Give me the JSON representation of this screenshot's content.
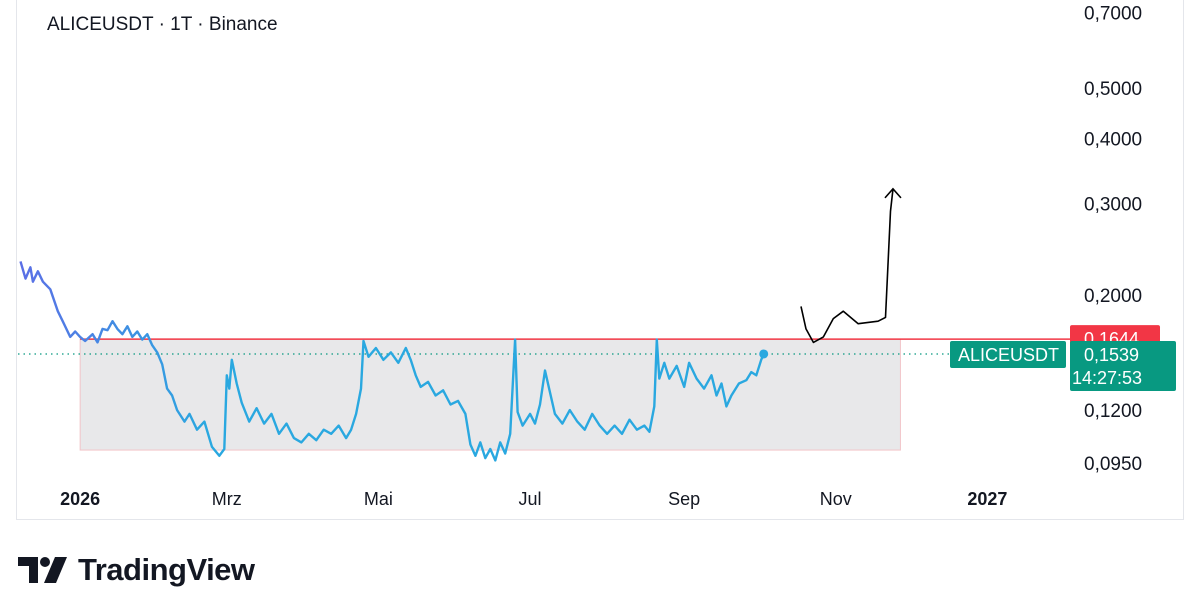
{
  "header": {
    "title": "ALICEUSDT · 1T · Binance"
  },
  "brand": {
    "name": "TradingView",
    "logo_icon": "tradingview-logo-icon"
  },
  "colors": {
    "price_line_start": "#5b6fe6",
    "price_line_end": "#2aa8e0",
    "resistance": "#f23645",
    "current_price": "#089981",
    "range_fill": "#e8e8ea",
    "drawing": "#000000"
  },
  "chart_data": {
    "type": "line",
    "title": "ALICEUSDT · 1T · Binance",
    "symbol": "ALICEUSDT",
    "interval": "1T",
    "exchange": "Binance",
    "y_scale": "log",
    "ylim": [
      0.092,
      0.72
    ],
    "y_ticks": [
      {
        "value": 0.7,
        "label": "0,7000"
      },
      {
        "value": 0.5,
        "label": "0,5000"
      },
      {
        "value": 0.4,
        "label": "0,4000"
      },
      {
        "value": 0.3,
        "label": "0,3000"
      },
      {
        "value": 0.2,
        "label": "0,2000"
      },
      {
        "value": 0.12,
        "label": "0,1200"
      },
      {
        "value": 0.095,
        "label": "0,0950"
      }
    ],
    "x_range": [
      "2025-12-07",
      "2027-01-31"
    ],
    "x_ticks": [
      {
        "date": "2026-01-01",
        "label": "2026",
        "year": true
      },
      {
        "date": "2026-03-01",
        "label": "Mrz",
        "year": false
      },
      {
        "date": "2026-05-01",
        "label": "Mai",
        "year": false
      },
      {
        "date": "2026-07-01",
        "label": "Jul",
        "year": false
      },
      {
        "date": "2026-09-01",
        "label": "Sep",
        "year": false
      },
      {
        "date": "2026-11-01",
        "label": "Nov",
        "year": false
      },
      {
        "date": "2027-01-01",
        "label": "2027",
        "year": true
      }
    ],
    "series": [
      {
        "points": [
          [
            "2025-12-08",
            0.232
          ],
          [
            "2025-12-10",
            0.215
          ],
          [
            "2025-12-12",
            0.226
          ],
          [
            "2025-12-13",
            0.212
          ],
          [
            "2025-12-15",
            0.222
          ],
          [
            "2025-12-17",
            0.212
          ],
          [
            "2025-12-20",
            0.205
          ],
          [
            "2025-12-23",
            0.186
          ],
          [
            "2025-12-25",
            0.178
          ],
          [
            "2025-12-28",
            0.166
          ],
          [
            "2025-12-30",
            0.17
          ],
          [
            "2026-01-01",
            0.166
          ],
          [
            "2026-01-03",
            0.163
          ],
          [
            "2026-01-06",
            0.168
          ],
          [
            "2026-01-08",
            0.162
          ],
          [
            "2026-01-10",
            0.172
          ],
          [
            "2026-01-12",
            0.171
          ],
          [
            "2026-01-14",
            0.178
          ],
          [
            "2026-01-16",
            0.172
          ],
          [
            "2026-01-18",
            0.168
          ],
          [
            "2026-01-20",
            0.174
          ],
          [
            "2026-01-22",
            0.166
          ],
          [
            "2026-01-24",
            0.17
          ],
          [
            "2026-01-26",
            0.164
          ],
          [
            "2026-01-28",
            0.168
          ],
          [
            "2026-01-30",
            0.16
          ],
          [
            "2026-02-01",
            0.155
          ],
          [
            "2026-02-03",
            0.147
          ],
          [
            "2026-02-05",
            0.132
          ],
          [
            "2026-02-07",
            0.128
          ],
          [
            "2026-02-09",
            0.12
          ],
          [
            "2026-02-12",
            0.114
          ],
          [
            "2026-02-14",
            0.118
          ],
          [
            "2026-02-17",
            0.11
          ],
          [
            "2026-02-20",
            0.114
          ],
          [
            "2026-02-23",
            0.102
          ],
          [
            "2026-02-26",
            0.098
          ],
          [
            "2026-02-28",
            0.101
          ],
          [
            "2026-03-01",
            0.14
          ],
          [
            "2026-03-02",
            0.132
          ],
          [
            "2026-03-03",
            0.15
          ],
          [
            "2026-03-05",
            0.135
          ],
          [
            "2026-03-07",
            0.124
          ],
          [
            "2026-03-10",
            0.114
          ],
          [
            "2026-03-13",
            0.121
          ],
          [
            "2026-03-16",
            0.113
          ],
          [
            "2026-03-19",
            0.118
          ],
          [
            "2026-03-22",
            0.108
          ],
          [
            "2026-03-25",
            0.113
          ],
          [
            "2026-03-28",
            0.106
          ],
          [
            "2026-03-31",
            0.104
          ],
          [
            "2026-04-03",
            0.108
          ],
          [
            "2026-04-06",
            0.105
          ],
          [
            "2026-04-09",
            0.11
          ],
          [
            "2026-04-12",
            0.108
          ],
          [
            "2026-04-15",
            0.112
          ],
          [
            "2026-04-18",
            0.106
          ],
          [
            "2026-04-20",
            0.11
          ],
          [
            "2026-04-22",
            0.118
          ],
          [
            "2026-04-24",
            0.132
          ],
          [
            "2026-04-25",
            0.163
          ],
          [
            "2026-04-27",
            0.152
          ],
          [
            "2026-04-30",
            0.158
          ],
          [
            "2026-05-03",
            0.15
          ],
          [
            "2026-05-06",
            0.155
          ],
          [
            "2026-05-09",
            0.148
          ],
          [
            "2026-05-12",
            0.158
          ],
          [
            "2026-05-14",
            0.15
          ],
          [
            "2026-05-16",
            0.14
          ],
          [
            "2026-05-18",
            0.133
          ],
          [
            "2026-05-21",
            0.136
          ],
          [
            "2026-05-24",
            0.128
          ],
          [
            "2026-05-27",
            0.131
          ],
          [
            "2026-05-30",
            0.123
          ],
          [
            "2026-06-02",
            0.125
          ],
          [
            "2026-06-05",
            0.118
          ],
          [
            "2026-06-07",
            0.103
          ],
          [
            "2026-06-09",
            0.098
          ],
          [
            "2026-06-11",
            0.104
          ],
          [
            "2026-06-13",
            0.097
          ],
          [
            "2026-06-15",
            0.101
          ],
          [
            "2026-06-17",
            0.096
          ],
          [
            "2026-06-19",
            0.104
          ],
          [
            "2026-06-21",
            0.099
          ],
          [
            "2026-06-23",
            0.108
          ],
          [
            "2026-06-25",
            0.164
          ],
          [
            "2026-06-26",
            0.119
          ],
          [
            "2026-06-28",
            0.112
          ],
          [
            "2026-07-01",
            0.118
          ],
          [
            "2026-07-03",
            0.113
          ],
          [
            "2026-07-05",
            0.123
          ],
          [
            "2026-07-07",
            0.143
          ],
          [
            "2026-07-09",
            0.13
          ],
          [
            "2026-07-11",
            0.118
          ],
          [
            "2026-07-14",
            0.113
          ],
          [
            "2026-07-17",
            0.12
          ],
          [
            "2026-07-20",
            0.114
          ],
          [
            "2026-07-23",
            0.11
          ],
          [
            "2026-07-26",
            0.118
          ],
          [
            "2026-07-29",
            0.112
          ],
          [
            "2026-08-01",
            0.108
          ],
          [
            "2026-08-04",
            0.112
          ],
          [
            "2026-08-07",
            0.108
          ],
          [
            "2026-08-10",
            0.115
          ],
          [
            "2026-08-13",
            0.11
          ],
          [
            "2026-08-16",
            0.112
          ],
          [
            "2026-08-18",
            0.109
          ],
          [
            "2026-08-20",
            0.122
          ],
          [
            "2026-08-21",
            0.164
          ],
          [
            "2026-08-22",
            0.138
          ],
          [
            "2026-08-24",
            0.148
          ],
          [
            "2026-08-26",
            0.138
          ],
          [
            "2026-08-29",
            0.146
          ],
          [
            "2026-09-01",
            0.133
          ],
          [
            "2026-09-03",
            0.148
          ],
          [
            "2026-09-06",
            0.138
          ],
          [
            "2026-09-09",
            0.132
          ],
          [
            "2026-09-12",
            0.14
          ],
          [
            "2026-09-14",
            0.128
          ],
          [
            "2026-09-16",
            0.135
          ],
          [
            "2026-09-18",
            0.122
          ],
          [
            "2026-09-20",
            0.128
          ],
          [
            "2026-09-23",
            0.135
          ],
          [
            "2026-09-26",
            0.137
          ],
          [
            "2026-09-28",
            0.142
          ],
          [
            "2026-09-30",
            0.14
          ],
          [
            "2026-10-02",
            0.15
          ],
          [
            "2026-10-03",
            0.1539
          ]
        ]
      }
    ],
    "resistance_level": {
      "value": 0.1644,
      "label": "0,1644"
    },
    "current_price": {
      "value": 0.1539,
      "label": "0,1539",
      "countdown": "14:27:53",
      "symbol_label": "ALICEUSDT"
    },
    "range_box": {
      "x_start": "2026-01-01",
      "x_end": "2026-11-27",
      "y_top": 0.1644,
      "y_bottom": 0.1005
    },
    "projection_drawing": {
      "points": [
        [
          "2026-10-18",
          0.19
        ],
        [
          "2026-10-20",
          0.172
        ],
        [
          "2026-10-23",
          0.162
        ],
        [
          "2026-10-27",
          0.166
        ],
        [
          "2026-10-31",
          0.18
        ],
        [
          "2026-11-04",
          0.186
        ],
        [
          "2026-11-10",
          0.176
        ],
        [
          "2026-11-18",
          0.178
        ],
        [
          "2026-11-21",
          0.181
        ],
        [
          "2026-11-23",
          0.29
        ],
        [
          "2026-11-24",
          0.32
        ]
      ],
      "arrow_head": true
    }
  }
}
